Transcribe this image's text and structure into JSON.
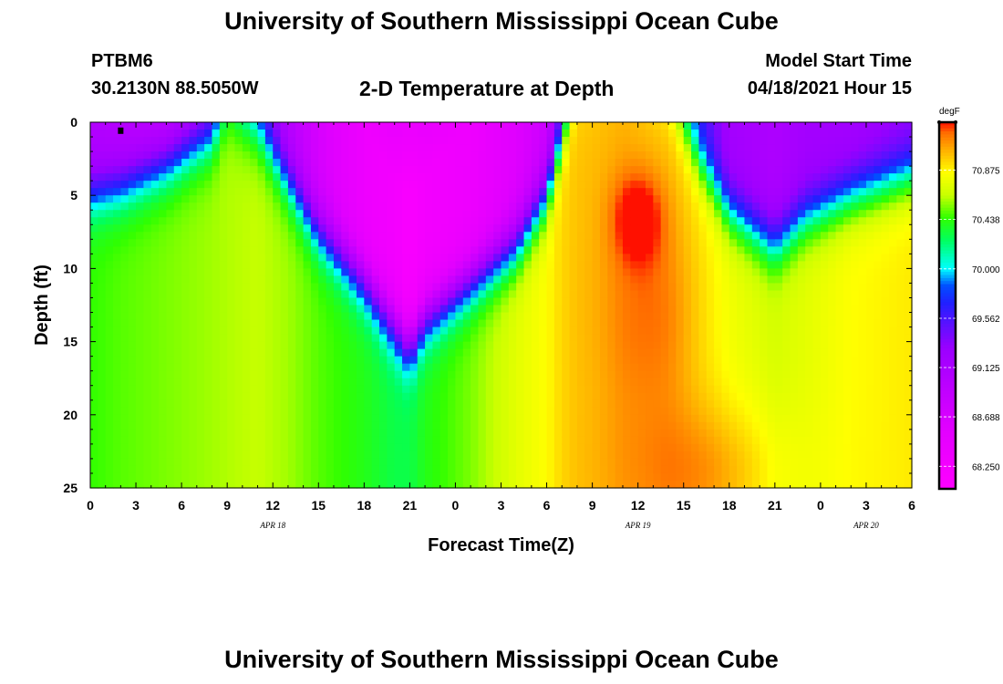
{
  "page": {
    "title_top": "University of Southern Mississippi Ocean Cube",
    "title_bottom": "University of Southern Mississippi Ocean Cube",
    "station": "PTBM6",
    "location": "30.2130N  88.5050W",
    "plot_title": "2-D Temperature at Depth",
    "model_label": "Model Start Time",
    "model_time": "04/18/2021 Hour 15"
  },
  "chart_data": {
    "type": "heatmap",
    "title": "2-D Temperature at Depth",
    "xlabel": "Forecast Time(Z)",
    "ylabel": "Depth (ft)",
    "x_ticks": [
      "0",
      "3",
      "6",
      "9",
      "12",
      "15",
      "18",
      "21",
      "0",
      "3",
      "6",
      "9",
      "12",
      "15",
      "18",
      "21",
      "0",
      "3",
      "6"
    ],
    "x_range_hours": [
      0,
      54
    ],
    "date_labels": [
      {
        "text": "APR 18",
        "hour": 12
      },
      {
        "text": "APR 19",
        "hour": 36
      },
      {
        "text": "APR 20",
        "hour": 51
      }
    ],
    "y_ticks": [
      "0",
      "5",
      "10",
      "15",
      "20",
      "25"
    ],
    "y_range_ft": [
      0,
      25
    ],
    "colorbar": {
      "unit": "degF",
      "ticks": [
        "70.875",
        "70.438",
        "70.000",
        "69.562",
        "69.125",
        "68.688",
        "68.250"
      ],
      "min": 68.05,
      "max": 71.3,
      "colors": [
        {
          "v": 68.05,
          "c": "#ff00ff"
        },
        {
          "v": 68.6,
          "c": "#e000ff"
        },
        {
          "v": 69.3,
          "c": "#9a00ff"
        },
        {
          "v": 69.7,
          "c": "#2020ff"
        },
        {
          "v": 69.85,
          "c": "#0050ff"
        },
        {
          "v": 70.0,
          "c": "#00ffff"
        },
        {
          "v": 70.25,
          "c": "#00ff60"
        },
        {
          "v": 70.45,
          "c": "#30ff00"
        },
        {
          "v": 70.65,
          "c": "#c8ff00"
        },
        {
          "v": 70.85,
          "c": "#ffff00"
        },
        {
          "v": 71.05,
          "c": "#ffb000"
        },
        {
          "v": 71.2,
          "c": "#ff7000"
        },
        {
          "v": 71.3,
          "c": "#ff1000"
        }
      ]
    },
    "profile_columns": [
      {
        "hour": 0,
        "thermocline_ft": 5.0,
        "deep_degF": 70.45,
        "surface_degF": 69.05,
        "surface_ft": 0
      },
      {
        "hour": 2,
        "thermocline_ft": 4.5,
        "deep_degF": 70.5,
        "surface_degF": 69.0,
        "surface_ft": 0
      },
      {
        "hour": 5,
        "thermocline_ft": 3.0,
        "deep_degF": 70.55,
        "surface_degF": 68.9,
        "surface_ft": 0
      },
      {
        "hour": 8,
        "thermocline_ft": 1.0,
        "deep_degF": 70.6,
        "surface_degF": 69.1,
        "surface_ft": 0
      },
      {
        "hour": 9,
        "thermocline_ft": -1.0,
        "deep_degF": 70.62,
        "surface_degF": 69.9,
        "surface_ft": 0
      },
      {
        "hour": 11,
        "thermocline_ft": 0.5,
        "deep_degF": 70.65,
        "surface_degF": 69.5,
        "surface_ft": 0
      },
      {
        "hour": 13,
        "thermocline_ft": 4.0,
        "deep_degF": 70.6,
        "surface_degF": 69.0,
        "surface_ft": 0
      },
      {
        "hour": 15,
        "thermocline_ft": 7.5,
        "deep_degF": 70.5,
        "surface_degF": 68.7,
        "surface_ft": 0
      },
      {
        "hour": 18,
        "thermocline_ft": 11.0,
        "deep_degF": 70.4,
        "surface_degF": 68.35,
        "surface_ft": 0
      },
      {
        "hour": 20,
        "thermocline_ft": 14.0,
        "deep_degF": 70.3,
        "surface_degF": 68.25,
        "surface_ft": 4.0
      },
      {
        "hour": 21,
        "thermocline_ft": 15.5,
        "deep_degF": 70.3,
        "surface_degF": 68.15,
        "surface_ft": 5.0
      },
      {
        "hour": 22,
        "thermocline_ft": 13.5,
        "deep_degF": 70.4,
        "surface_degF": 68.25,
        "surface_ft": 4.0
      },
      {
        "hour": 25,
        "thermocline_ft": 11.0,
        "deep_degF": 70.55,
        "surface_degF": 68.35,
        "surface_ft": 0
      },
      {
        "hour": 28,
        "thermocline_ft": 8.5,
        "deep_degF": 70.75,
        "surface_degF": 68.6,
        "surface_ft": 0
      },
      {
        "hour": 30,
        "thermocline_ft": 5.0,
        "deep_degF": 70.85,
        "surface_degF": 68.8,
        "surface_ft": 0
      },
      {
        "hour": 31,
        "thermocline_ft": 1.0,
        "deep_degF": 70.95,
        "surface_degF": 69.3,
        "surface_ft": 0
      },
      {
        "hour": 32,
        "thermocline_ft": -3.0,
        "deep_degF": 71.0,
        "surface_degF": 70.3,
        "surface_ft": 0
      },
      {
        "hour": 35,
        "thermocline_ft": -4.0,
        "deep_degF": 71.05,
        "surface_degF": 70.6,
        "surface_ft": 0
      },
      {
        "hour": 38,
        "thermocline_ft": -2.0,
        "deep_degF": 71.0,
        "surface_degF": 70.3,
        "surface_ft": 0
      },
      {
        "hour": 40,
        "thermocline_ft": 2.5,
        "deep_degF": 70.9,
        "surface_degF": 69.6,
        "surface_ft": 0
      },
      {
        "hour": 42,
        "thermocline_ft": 6.0,
        "deep_degF": 70.8,
        "surface_degF": 69.2,
        "surface_ft": 0
      },
      {
        "hour": 45,
        "thermocline_ft": 8.5,
        "deep_degF": 70.7,
        "surface_degF": 69.1,
        "surface_ft": 0
      },
      {
        "hour": 47,
        "thermocline_ft": 6.5,
        "deep_degF": 70.75,
        "surface_degF": 69.2,
        "surface_ft": 0
      },
      {
        "hour": 50,
        "thermocline_ft": 5.0,
        "deep_degF": 70.85,
        "surface_degF": 69.2,
        "surface_ft": 0
      },
      {
        "hour": 54,
        "thermocline_ft": 3.5,
        "deep_degF": 70.9,
        "surface_degF": 69.3,
        "surface_ft": 0
      }
    ],
    "warm_anomalies": [
      {
        "hour": 36,
        "depth_ft": 6.5,
        "delta_degF": 0.35,
        "spread_hours": 1.6,
        "spread_ft": 3.0
      },
      {
        "hour": 37,
        "depth_ft": 13.0,
        "delta_degF": 0.18,
        "spread_hours": 3.0,
        "spread_ft": 7.0
      },
      {
        "hour": 41,
        "depth_ft": 24.0,
        "delta_degF": 0.25,
        "spread_hours": 5.0,
        "spread_ft": 5.0
      }
    ],
    "markers": [
      {
        "hour": 2,
        "depth_ft": 0.3,
        "label": "station marker"
      }
    ]
  }
}
